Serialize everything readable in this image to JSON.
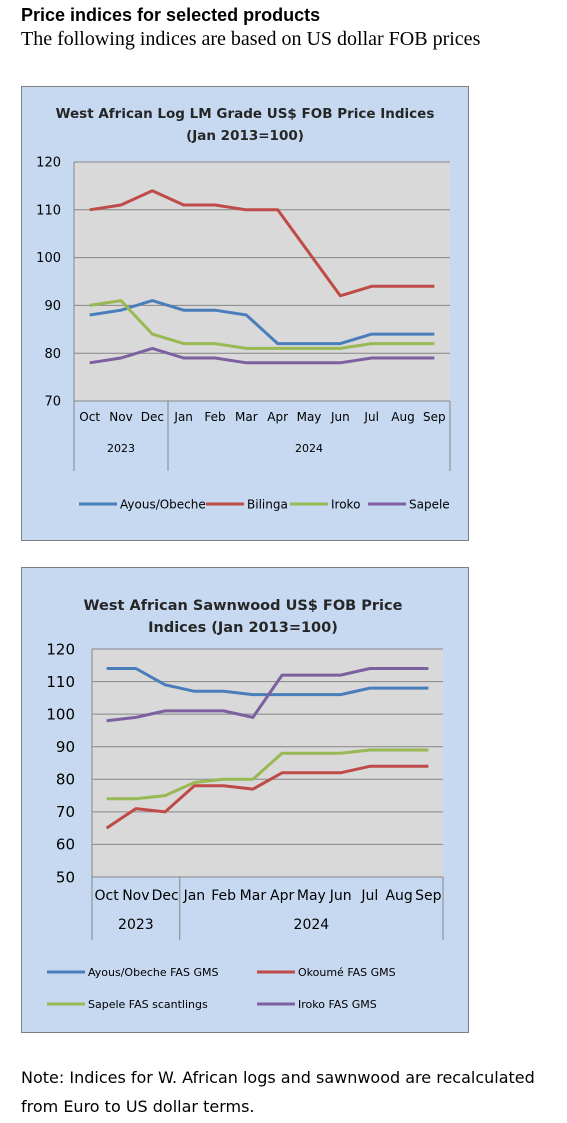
{
  "page": {
    "heading": "Price indices for selected products",
    "subheading": "The following indices are based on US dollar FOB prices",
    "note": "Note: Indices for W. African logs and sawnwood are recalculated from Euro to US dollar terms."
  },
  "chart_data": [
    {
      "type": "line",
      "title": "West African Log LM Grade US$ FOB Price Indices (Jan 2013=100)",
      "title_lines": [
        "West African Log LM Grade US$ FOB Price Indices",
        "(Jan 2013=100)"
      ],
      "categories": [
        "Oct",
        "Nov",
        "Dec",
        "Jan",
        "Feb",
        "Mar",
        "Apr",
        "May",
        "Jun",
        "Jul",
        "Aug",
        "Sep"
      ],
      "year_groups": [
        {
          "label": "2023",
          "count": 3
        },
        {
          "label": "2024",
          "count": 9
        }
      ],
      "ylim": [
        70,
        120
      ],
      "yticks": [
        70,
        80,
        90,
        100,
        110,
        120
      ],
      "grid": true,
      "legend_position": "bottom",
      "series": [
        {
          "name": "Ayous/Obeche",
          "color": "#4a7ebb",
          "values": [
            88,
            89,
            91,
            89,
            89,
            88,
            82,
            82,
            82,
            84,
            84,
            84
          ]
        },
        {
          "name": "Bilinga",
          "color": "#be4b48",
          "values": [
            110,
            111,
            114,
            111,
            111,
            110,
            110,
            101,
            92,
            94,
            94,
            94
          ]
        },
        {
          "name": "Iroko",
          "color": "#98b954",
          "values": [
            90,
            91,
            84,
            82,
            82,
            81,
            81,
            81,
            81,
            82,
            82,
            82
          ]
        },
        {
          "name": "Sapele",
          "color": "#7d60a0",
          "values": [
            78,
            79,
            81,
            79,
            79,
            78,
            78,
            78,
            78,
            79,
            79,
            79
          ]
        }
      ]
    },
    {
      "type": "line",
      "title": "West African Sawnwood US$ FOB Price Indices (Jan 2013=100)",
      "title_lines": [
        "West African Sawnwood US$ FOB Price",
        "Indices (Jan 2013=100)"
      ],
      "categories": [
        "Oct",
        "Nov",
        "Dec",
        "Jan",
        "Feb",
        "Mar",
        "Apr",
        "May",
        "Jun",
        "Jul",
        "Aug",
        "Sep"
      ],
      "year_groups": [
        {
          "label": "2023",
          "count": 3
        },
        {
          "label": "2024",
          "count": 9
        }
      ],
      "ylim": [
        50,
        120
      ],
      "yticks": [
        50,
        60,
        70,
        80,
        90,
        100,
        110,
        120
      ],
      "grid": true,
      "legend_position": "bottom",
      "series": [
        {
          "name": "Ayous/Obeche  FAS GMS",
          "color": "#4a7ebb",
          "values": [
            114,
            114,
            109,
            107,
            107,
            106,
            106,
            106,
            106,
            108,
            108,
            108
          ]
        },
        {
          "name": "Okoumé  FAS GMS",
          "color": "#be4b48",
          "values": [
            65,
            71,
            70,
            78,
            78,
            77,
            82,
            82,
            82,
            84,
            84,
            84
          ]
        },
        {
          "name": "Sapele FAS scantlings",
          "color": "#98b954",
          "values": [
            74,
            74,
            75,
            79,
            80,
            80,
            88,
            88,
            88,
            89,
            89,
            89
          ]
        },
        {
          "name": "Iroko FAS GMS",
          "color": "#7d60a0",
          "values": [
            98,
            99,
            101,
            101,
            101,
            99,
            112,
            112,
            112,
            114,
            114,
            114
          ]
        }
      ]
    }
  ]
}
